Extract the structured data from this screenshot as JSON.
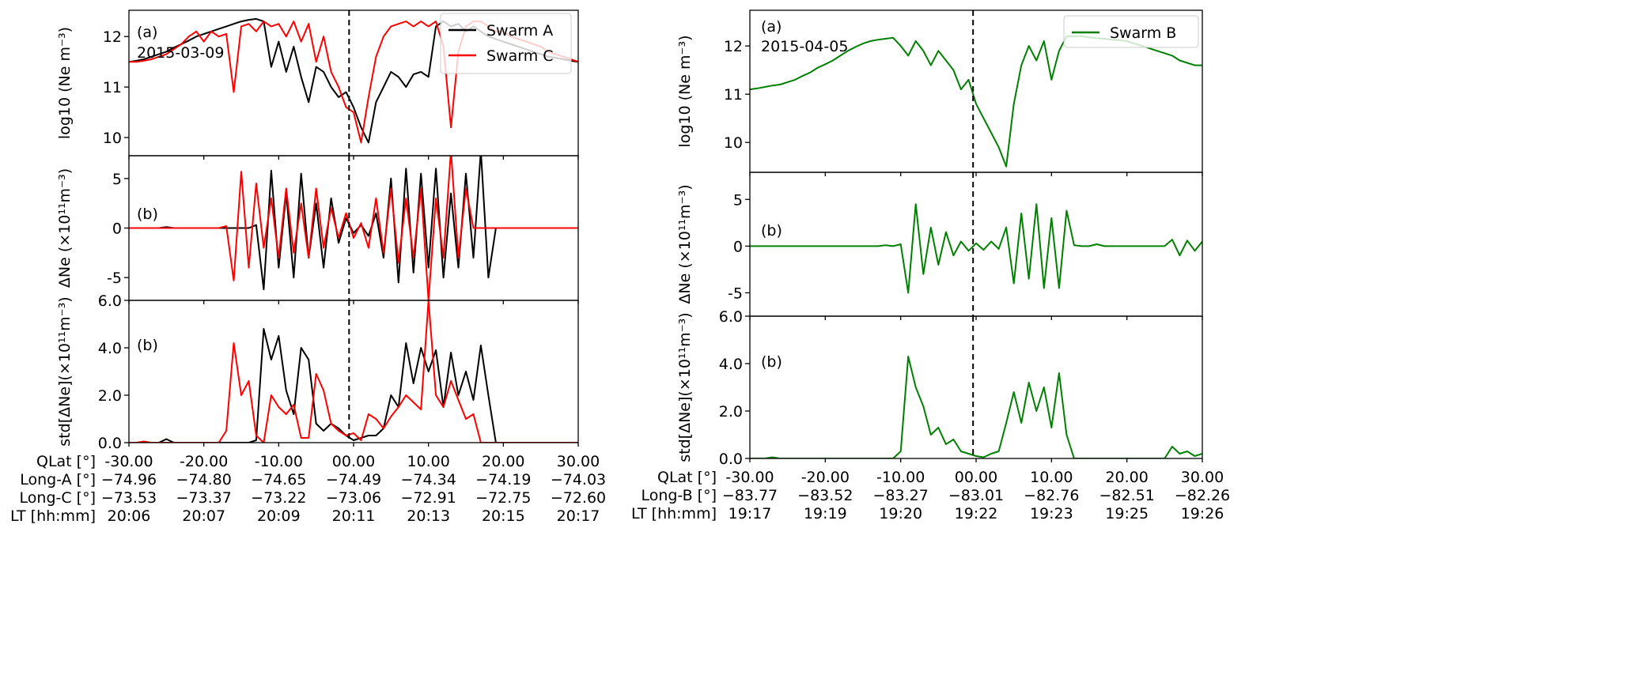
{
  "chart_data": [
    {
      "type": "line",
      "figure": "left",
      "x": [
        -30,
        -29,
        -28,
        -27,
        -26,
        -25,
        -24,
        -23,
        -22,
        -21,
        -20,
        -19,
        -18,
        -17,
        -16,
        -15,
        -14,
        -13,
        -12,
        -11,
        -10,
        -9,
        -8,
        -7,
        -6,
        -5,
        -4,
        -3,
        -2,
        -1,
        0,
        1,
        2,
        3,
        4,
        5,
        6,
        7,
        8,
        9,
        10,
        11,
        12,
        13,
        14,
        15,
        16,
        17,
        18,
        19,
        20,
        21,
        22,
        23,
        24,
        25,
        26,
        27,
        28,
        29,
        30
      ],
      "xlim": [
        -30,
        30
      ],
      "dashed_line_x": -0.6,
      "x_rows": [
        {
          "label": "QLat [°]",
          "ticks": [
            "-30.00",
            "-20.00",
            "-10.00",
            "00.00",
            "10.00",
            "20.00",
            "30.00"
          ]
        },
        {
          "label": "Long-A [°]",
          "ticks": [
            "−74.96",
            "−74.80",
            "−74.65",
            "−74.49",
            "−74.34",
            "−74.19",
            "−74.03"
          ]
        },
        {
          "label": "Long-C [°]",
          "ticks": [
            "−73.53",
            "−73.37",
            "−73.22",
            "−73.06",
            "−72.91",
            "−72.75",
            "−72.60"
          ]
        },
        {
          "label": "LT [hh:mm]",
          "ticks": [
            "20:06",
            "20:07",
            "20:09",
            "20:11",
            "20:13",
            "20:15",
            "20:17"
          ]
        }
      ],
      "legend": [
        {
          "name": "Swarm A",
          "color": "#000000"
        },
        {
          "name": "Swarm C",
          "color": "#ff0000"
        }
      ],
      "legend_placement": "top-right",
      "panels": [
        {
          "ylabel": "log10 (Ne m⁻³)",
          "tag": "(a)",
          "date": "2015-03-09",
          "ylim": [
            9.64,
            12.52
          ],
          "yticks": [
            10,
            11,
            12
          ],
          "ytick_labels": [
            "10",
            "11",
            "12"
          ],
          "series": [
            {
              "name": "Swarm A",
              "color": "#000000",
              "values": [
                11.5,
                11.52,
                11.55,
                11.6,
                11.65,
                11.7,
                11.78,
                11.85,
                11.92,
                12.0,
                12.05,
                12.1,
                12.15,
                12.2,
                12.25,
                12.3,
                12.33,
                12.35,
                12.3,
                11.4,
                11.9,
                11.3,
                11.8,
                11.2,
                10.7,
                11.4,
                11.3,
                11.0,
                10.8,
                10.9,
                10.6,
                10.2,
                9.9,
                10.7,
                11.0,
                11.3,
                11.2,
                11.0,
                11.25,
                11.3,
                11.2,
                12.2,
                12.3,
                12.2,
                12.25,
                12.1,
                12.2,
                12.1,
                12.0,
                11.95,
                11.9,
                11.85,
                11.8,
                11.75,
                11.7,
                11.65,
                11.6,
                11.58,
                11.55,
                11.52,
                11.5
              ]
            },
            {
              "name": "Swarm C",
              "color": "#ff0000",
              "values": [
                11.5,
                11.5,
                11.52,
                11.55,
                11.6,
                11.65,
                11.75,
                11.85,
                12.0,
                12.1,
                11.9,
                12.1,
                12.0,
                12.05,
                10.9,
                12.2,
                12.25,
                12.1,
                12.3,
                12.2,
                12.25,
                12.0,
                12.3,
                11.9,
                12.25,
                11.5,
                12.0,
                11.3,
                11.0,
                10.6,
                10.5,
                9.9,
                10.8,
                11.6,
                12.0,
                12.2,
                12.25,
                12.3,
                12.2,
                12.3,
                12.2,
                12.3,
                11.8,
                10.2,
                11.7,
                12.2,
                12.3,
                12.3,
                12.2,
                12.1,
                12.1,
                12.0,
                11.95,
                11.9,
                11.85,
                11.8,
                11.7,
                11.65,
                11.6,
                11.55,
                11.5
              ]
            }
          ]
        },
        {
          "ylabel": "ΔNe (×10¹¹m⁻³)",
          "tag": "(b)",
          "ylim": [
            -7.3,
            7.3
          ],
          "yticks": [
            -5,
            0,
            5
          ],
          "ytick_labels": [
            "-5",
            "0",
            "5"
          ],
          "series": [
            {
              "name": "Swarm A",
              "color": "#000000",
              "values": [
                0,
                0,
                0,
                0,
                0,
                0.1,
                0,
                0,
                0,
                0,
                0,
                0,
                0,
                0,
                0,
                0,
                0,
                0.3,
                -6.2,
                5.8,
                -4,
                3.5,
                -5,
                5.5,
                -3,
                2.5,
                -4,
                3,
                -1.5,
                1,
                -0.5,
                0.3,
                -0.8,
                1.5,
                -3,
                5,
                -5.5,
                6,
                -4.5,
                5.5,
                -4,
                6,
                -5,
                3.5,
                -4,
                5.5,
                -3,
                7.8,
                -5,
                0,
                0,
                0,
                0,
                0,
                0,
                0,
                0,
                0,
                0,
                0,
                0
              ]
            },
            {
              "name": "Swarm C",
              "color": "#ff0000",
              "values": [
                0,
                0,
                0,
                0,
                0,
                0,
                0,
                0,
                0,
                0,
                0,
                0,
                0,
                0.2,
                -5.3,
                5.7,
                -4,
                4.5,
                -2,
                3,
                -3,
                4,
                -2.5,
                2.5,
                -3,
                4,
                -2,
                2,
                -1,
                1.5,
                -1,
                0.5,
                -2,
                3,
                -2.5,
                4,
                -3.5,
                3,
                -3,
                4,
                -7.3,
                3,
                -3,
                7.8,
                -3,
                4,
                0,
                0,
                0,
                0,
                0,
                0,
                0,
                0,
                0,
                0,
                0,
                0,
                0,
                0,
                0
              ]
            }
          ]
        },
        {
          "ylabel": "std[ΔNe](×10¹¹m⁻³)",
          "tag": "(b)",
          "ylim": [
            0,
            6
          ],
          "yticks": [
            0,
            2,
            4,
            6
          ],
          "ytick_labels": [
            "0.0",
            "2.0",
            "4.0",
            "6.0"
          ],
          "series": [
            {
              "name": "Swarm A",
              "color": "#000000",
              "values": [
                0,
                0,
                0,
                0,
                0,
                0.15,
                0,
                0,
                0,
                0,
                0,
                0,
                0,
                0,
                0,
                0,
                0,
                0.1,
                4.8,
                3.5,
                4.5,
                2.2,
                1.2,
                4.0,
                3.5,
                0.8,
                0.5,
                0.8,
                0.6,
                0.3,
                0.1,
                0.2,
                0.3,
                0.3,
                0.6,
                2.0,
                1.5,
                4.2,
                2.5,
                4.0,
                3.0,
                3.9,
                1.5,
                3.8,
                2.0,
                3.0,
                1.8,
                4.1,
                2.0,
                0,
                0,
                0,
                0,
                0,
                0,
                0,
                0,
                0,
                0,
                0,
                0
              ]
            },
            {
              "name": "Swarm C",
              "color": "#ff0000",
              "values": [
                0,
                0,
                0.05,
                0,
                0,
                0,
                0,
                0,
                0,
                0,
                0,
                0,
                0,
                0.5,
                4.2,
                2.0,
                2.6,
                0.3,
                0,
                2.0,
                1.5,
                1.2,
                1.6,
                0.2,
                0.2,
                2.9,
                2.2,
                0.8,
                0.5,
                0.3,
                0.4,
                0.1,
                1.2,
                1.0,
                0.6,
                1.1,
                1.5,
                2.0,
                1.7,
                1.4,
                6.0,
                2.0,
                1.5,
                2.6,
                1.8,
                1.0,
                1.2,
                0,
                0,
                0,
                0,
                0,
                0,
                0,
                0,
                0,
                0,
                0,
                0,
                0,
                0
              ]
            }
          ]
        }
      ]
    },
    {
      "type": "line",
      "figure": "right",
      "x": [
        -30,
        -29,
        -28,
        -27,
        -26,
        -25,
        -24,
        -23,
        -22,
        -21,
        -20,
        -19,
        -18,
        -17,
        -16,
        -15,
        -14,
        -13,
        -12,
        -11,
        -10,
        -9,
        -8,
        -7,
        -6,
        -5,
        -4,
        -3,
        -2,
        -1,
        0,
        1,
        2,
        3,
        4,
        5,
        6,
        7,
        8,
        9,
        10,
        11,
        12,
        13,
        14,
        15,
        16,
        17,
        18,
        19,
        20,
        21,
        22,
        23,
        24,
        25,
        26,
        27,
        28,
        29,
        30
      ],
      "xlim": [
        -30,
        30
      ],
      "dashed_line_x": -0.4,
      "x_rows": [
        {
          "label": "QLat [°]",
          "ticks": [
            "-30.00",
            "-20.00",
            "-10.00",
            "00.00",
            "10.00",
            "20.00",
            "30.00"
          ]
        },
        {
          "label": "Long-B [°]",
          "ticks": [
            "−83.77",
            "−83.52",
            "−83.27",
            "−83.01",
            "−82.76",
            "−82.51",
            "−82.26"
          ]
        },
        {
          "label": "LT [hh:mm]",
          "ticks": [
            "19:17",
            "19:19",
            "19:20",
            "19:22",
            "19:23",
            "19:25",
            "19:26"
          ]
        }
      ],
      "legend": [
        {
          "name": "Swarm B",
          "color": "#008000"
        }
      ],
      "legend_placement": "top-right",
      "panels": [
        {
          "ylabel": "log10 (Ne m⁻³)",
          "tag": "(a)",
          "date": "2015-04-05",
          "ylim": [
            9.38,
            12.74
          ],
          "yticks": [
            10,
            11,
            12
          ],
          "ytick_labels": [
            "10",
            "11",
            "12"
          ],
          "series": [
            {
              "name": "Swarm B",
              "color": "#008000",
              "values": [
                11.1,
                11.12,
                11.15,
                11.18,
                11.2,
                11.25,
                11.3,
                11.38,
                11.45,
                11.55,
                11.62,
                11.7,
                11.8,
                11.9,
                11.98,
                12.05,
                12.1,
                12.13,
                12.15,
                12.17,
                12.0,
                11.8,
                12.1,
                11.9,
                11.6,
                11.9,
                11.7,
                11.5,
                11.1,
                11.3,
                10.8,
                10.5,
                10.2,
                9.9,
                9.5,
                10.8,
                11.6,
                12.0,
                11.7,
                12.1,
                11.3,
                11.9,
                12.2,
                12.2,
                12.2,
                12.18,
                12.16,
                12.15,
                12.13,
                12.12,
                12.1,
                12.05,
                12.0,
                11.95,
                11.9,
                11.85,
                11.8,
                11.7,
                11.65,
                11.6,
                11.6
              ]
            }
          ]
        },
        {
          "ylabel": "ΔNe (×10¹¹m⁻³)",
          "tag": "(b)",
          "ylim": [
            -7.5,
            7.9
          ],
          "yticks": [
            -5,
            0,
            5
          ],
          "ytick_labels": [
            "-5",
            "0",
            "5"
          ],
          "series": [
            {
              "name": "Swarm B",
              "color": "#008000",
              "values": [
                0,
                0,
                0,
                0,
                0,
                0,
                0,
                0,
                0,
                0,
                0,
                0,
                0,
                0,
                0,
                0,
                0,
                0,
                0.1,
                0,
                0.2,
                -5,
                4.5,
                -3,
                2,
                -2,
                1.5,
                -1,
                0.5,
                -0.5,
                0.3,
                -0.4,
                0.5,
                -0.3,
                2,
                -4,
                3.5,
                -3.5,
                4.5,
                -4.5,
                3,
                -4.5,
                3.8,
                0.1,
                0,
                0,
                0.2,
                0,
                0,
                0,
                0,
                0,
                0,
                0,
                0,
                0,
                0.7,
                -1,
                0.6,
                -0.5,
                0.5
              ]
            }
          ]
        },
        {
          "ylabel": "std[ΔNe](×10¹¹m⁻³)",
          "tag": "(b)",
          "ylim": [
            0,
            6
          ],
          "yticks": [
            0,
            2,
            4,
            6
          ],
          "ytick_labels": [
            "0.0",
            "2.0",
            "4.0",
            "6.0"
          ],
          "series": [
            {
              "name": "Swarm B",
              "color": "#008000",
              "values": [
                0,
                0,
                0,
                0.05,
                0,
                0,
                0,
                0,
                0,
                0,
                0,
                0,
                0,
                0,
                0,
                0,
                0,
                0,
                0,
                0,
                0.3,
                4.3,
                3.0,
                2.2,
                1.0,
                1.3,
                0.6,
                0.8,
                0.3,
                0.2,
                0.1,
                0.05,
                0.2,
                0.3,
                1.5,
                2.8,
                1.5,
                3.2,
                2.0,
                3.0,
                1.3,
                3.6,
                1.0,
                0,
                0,
                0,
                0,
                0,
                0,
                0,
                0,
                0,
                0,
                0,
                0,
                0,
                0.5,
                0.2,
                0.3,
                0.1,
                0.2
              ]
            }
          ]
        }
      ]
    }
  ]
}
